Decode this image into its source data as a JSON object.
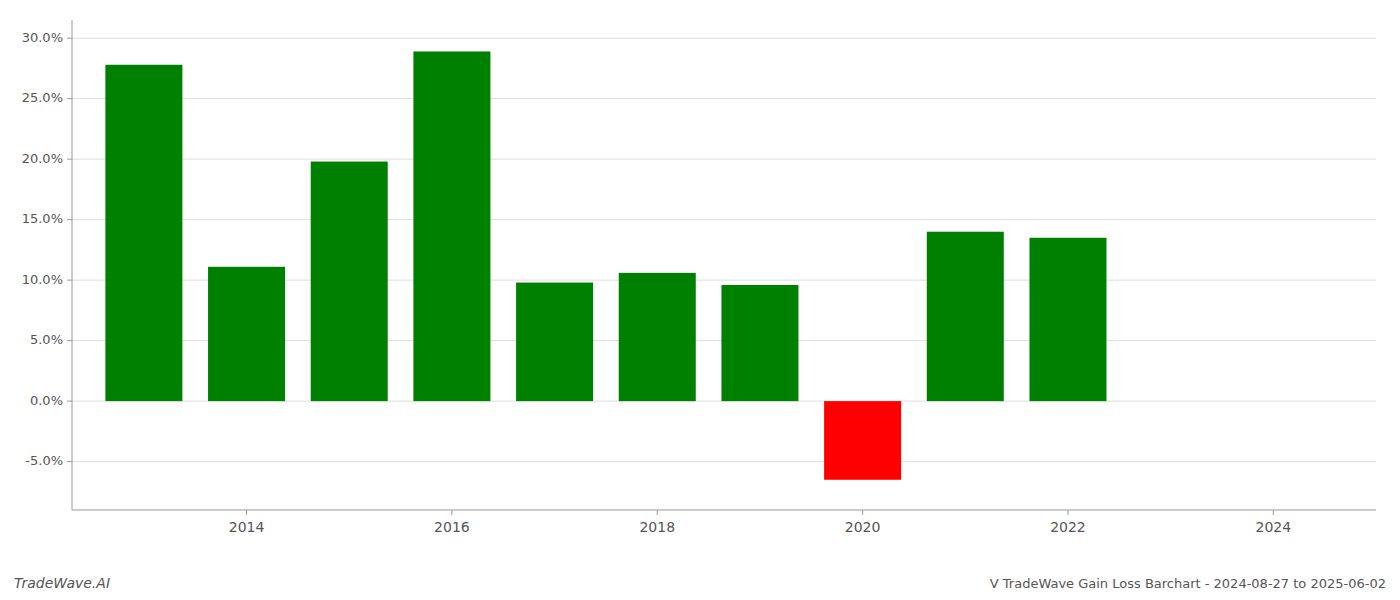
{
  "chart_data": {
    "type": "bar",
    "title": "V TradeWave Gain Loss Barchart - 2024-08-27 to 2025-06-02",
    "annotations": [
      "TradeWave.AI"
    ],
    "x": [
      2013,
      2014,
      2015,
      2016,
      2017,
      2018,
      2019,
      2020,
      2021,
      2022
    ],
    "values": [
      0.278,
      0.111,
      0.198,
      0.289,
      0.098,
      0.106,
      0.096,
      -0.065,
      0.14,
      0.135
    ],
    "colors": [
      "#008000",
      "#008000",
      "#008000",
      "#008000",
      "#008000",
      "#008000",
      "#008000",
      "#ff0000",
      "#008000",
      "#008000"
    ],
    "xlim": [
      2012.3,
      2025.0
    ],
    "xticks": [
      2014,
      2016,
      2018,
      2020,
      2022,
      2024
    ],
    "ylim": [
      -0.09,
      0.315
    ],
    "yticks": [
      {
        "value": -0.05,
        "label": "-5.0%"
      },
      {
        "value": 0.0,
        "label": "0.0%"
      },
      {
        "value": 0.05,
        "label": "5.0%"
      },
      {
        "value": 0.1,
        "label": "10.0%"
      },
      {
        "value": 0.15,
        "label": "15.0%"
      },
      {
        "value": 0.2,
        "label": "20.0%"
      },
      {
        "value": 0.25,
        "label": "25.0%"
      },
      {
        "value": 0.3,
        "label": "30.0%"
      }
    ],
    "grid": true
  }
}
